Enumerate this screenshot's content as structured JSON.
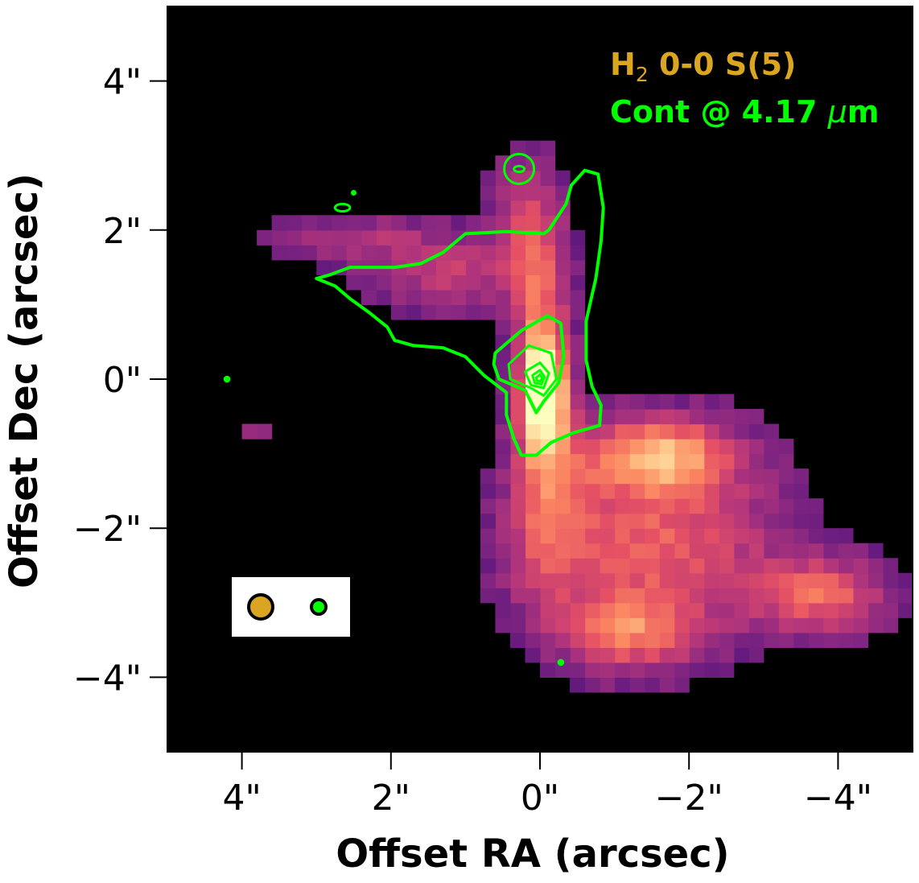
{
  "chart_data": {
    "type": "heatmap",
    "title": "",
    "xlabel": "Offset RA (arcsec)",
    "ylabel": "Offset Dec (arcsec)",
    "xlim": [
      5,
      -5
    ],
    "ylim": [
      -5,
      5
    ],
    "x_ticks": [
      {
        "value": 4,
        "label": "4\""
      },
      {
        "value": 2,
        "label": "2\""
      },
      {
        "value": 0,
        "label": "0\""
      },
      {
        "value": -2,
        "label": "−2\""
      },
      {
        "value": -4,
        "label": "−4\""
      }
    ],
    "y_ticks": [
      {
        "value": 4,
        "label": "4\""
      },
      {
        "value": 2,
        "label": "2\""
      },
      {
        "value": 0,
        "label": "0\""
      },
      {
        "value": -2,
        "label": "−2\""
      },
      {
        "value": -4,
        "label": "−4\""
      }
    ],
    "colormap": "magma",
    "background_color": "#000000",
    "grid": false,
    "legend": {
      "placement": "top-right",
      "entries": [
        {
          "label_main": "H",
          "label_sub": "2",
          "label_rest": " 0-0 S(5)",
          "color": "#DAA520"
        },
        {
          "label_main": "Cont @ 4.17 ",
          "label_greek": "μ",
          "label_rest": "m",
          "color": "#00FF00"
        }
      ]
    },
    "beams": [
      {
        "name": "H2 0-0 S(5) beam",
        "color": "#DAA520",
        "radius_arcsec": 0.17
      },
      {
        "name": "Cont @ 4.17 um beam",
        "color": "#00FF00",
        "radius_arcsec": 0.1
      }
    ],
    "emission_regions": [
      {
        "name": "central-knot",
        "x": -0.05,
        "y": -0.2,
        "sx": 0.22,
        "sy": 0.55,
        "amp": 1.0
      },
      {
        "name": "jet-axis",
        "x": 0.0,
        "y": 0.7,
        "sx": 0.25,
        "sy": 1.0,
        "amp": 0.55
      },
      {
        "name": "north-lobe-upper",
        "x": 0.2,
        "y": 2.2,
        "sx": 0.35,
        "sy": 0.6,
        "amp": 0.35
      },
      {
        "name": "north-lobe-west",
        "x": 1.2,
        "y": 1.4,
        "sx": 0.8,
        "sy": 0.35,
        "amp": 0.38
      },
      {
        "name": "north-lobe-tip",
        "x": 2.5,
        "y": 1.9,
        "sx": 0.9,
        "sy": 0.25,
        "amp": 0.28
      },
      {
        "name": "south-ridge",
        "x": -1.6,
        "y": -1.0,
        "sx": 0.7,
        "sy": 0.35,
        "amp": 0.75
      },
      {
        "name": "south-lobe-body",
        "x": -1.5,
        "y": -2.2,
        "sx": 1.2,
        "sy": 0.9,
        "amp": 0.6
      },
      {
        "name": "south-lobe-west-tip",
        "x": -3.8,
        "y": -2.9,
        "sx": 0.6,
        "sy": 0.35,
        "amp": 0.6
      },
      {
        "name": "south-lobe-base",
        "x": -1.2,
        "y": -3.4,
        "sx": 0.6,
        "sy": 0.35,
        "amp": 0.55
      },
      {
        "name": "south-axis",
        "x": -0.1,
        "y": -1.7,
        "sx": 0.35,
        "sy": 0.9,
        "amp": 0.45
      },
      {
        "name": "east-blob",
        "x": 3.8,
        "y": -0.7,
        "sx": 0.12,
        "sy": 0.15,
        "amp": 0.25
      }
    ],
    "continuum_contours": [
      {
        "level": 1,
        "points": [
          [
            3.0,
            1.35
          ],
          [
            2.75,
            1.25
          ],
          [
            2.55,
            1.08
          ],
          [
            2.3,
            0.9
          ],
          [
            2.05,
            0.7
          ],
          [
            1.95,
            0.52
          ],
          [
            1.7,
            0.45
          ],
          [
            1.3,
            0.42
          ],
          [
            1.0,
            0.3
          ],
          [
            0.75,
            0.05
          ],
          [
            0.45,
            -0.18
          ],
          [
            0.45,
            -0.48
          ],
          [
            0.35,
            -0.8
          ],
          [
            0.25,
            -1.02
          ],
          [
            0.05,
            -1.02
          ],
          [
            -0.15,
            -0.85
          ],
          [
            -0.45,
            -0.72
          ],
          [
            -0.8,
            -0.62
          ],
          [
            -0.82,
            -0.35
          ],
          [
            -0.7,
            -0.1
          ],
          [
            -0.62,
            0.25
          ],
          [
            -0.62,
            0.78
          ],
          [
            -0.75,
            1.35
          ],
          [
            -0.82,
            1.85
          ],
          [
            -0.85,
            2.3
          ],
          [
            -0.78,
            2.75
          ],
          [
            -0.6,
            2.8
          ],
          [
            -0.42,
            2.6
          ],
          [
            -0.35,
            2.35
          ],
          [
            -0.12,
            2.0
          ],
          [
            -0.05,
            1.95
          ],
          [
            0.45,
            1.98
          ],
          [
            1.0,
            1.95
          ],
          [
            1.3,
            1.7
          ],
          [
            1.6,
            1.55
          ],
          [
            1.95,
            1.5
          ],
          [
            2.2,
            1.5
          ],
          [
            2.55,
            1.5
          ],
          [
            2.82,
            1.4
          ]
        ]
      },
      {
        "level": 2,
        "points": [
          [
            0.6,
            0.35
          ],
          [
            0.25,
            0.65
          ],
          [
            -0.1,
            0.85
          ],
          [
            -0.28,
            0.75
          ],
          [
            -0.32,
            0.3
          ],
          [
            -0.25,
            -0.05
          ],
          [
            -0.05,
            -0.3
          ],
          [
            0.05,
            -0.45
          ],
          [
            0.2,
            -0.15
          ],
          [
            0.55,
            0.0
          ],
          [
            0.62,
            0.2
          ]
        ]
      },
      {
        "level": 3,
        "points": [
          [
            0.42,
            0.2
          ],
          [
            0.15,
            0.45
          ],
          [
            -0.15,
            0.35
          ],
          [
            -0.22,
            0.0
          ],
          [
            -0.05,
            -0.22
          ],
          [
            0.12,
            -0.12
          ],
          [
            0.4,
            0.0
          ]
        ]
      },
      {
        "level": 4,
        "points": [
          [
            0.2,
            0.1
          ],
          [
            0.0,
            0.22
          ],
          [
            -0.12,
            0.08
          ],
          [
            -0.05,
            -0.12
          ],
          [
            0.12,
            -0.08
          ]
        ]
      },
      {
        "level": 5,
        "points": [
          [
            0.1,
            0.05
          ],
          [
            0.0,
            0.12
          ],
          [
            -0.06,
            0.03
          ],
          [
            -0.02,
            -0.07
          ],
          [
            0.07,
            -0.05
          ]
        ]
      },
      {
        "level": 6,
        "points": [
          [
            0.05,
            0.02
          ],
          [
            0.0,
            0.06
          ],
          [
            -0.03,
            0.01
          ],
          [
            0.0,
            -0.03
          ],
          [
            0.04,
            -0.02
          ]
        ]
      }
    ],
    "continuum_small_contours": [
      {
        "name": "north-source-outer",
        "x": 0.28,
        "y": 2.82,
        "rx": 0.2,
        "ry": 0.2
      },
      {
        "name": "north-source-inner",
        "x": 0.28,
        "y": 2.82,
        "rx": 0.07,
        "ry": 0.04
      },
      {
        "name": "northeast-blip",
        "x": 2.65,
        "y": 2.3,
        "rx": 0.1,
        "ry": 0.05
      },
      {
        "name": "northeast-dot",
        "x": 2.5,
        "y": 2.5,
        "rx": 0.02,
        "ry": 0.02
      },
      {
        "name": "east-dot",
        "x": 4.2,
        "y": 0.0,
        "rx": 0.03,
        "ry": 0.03
      },
      {
        "name": "south-dot",
        "x": -0.28,
        "y": -3.8,
        "rx": 0.03,
        "ry": 0.03
      }
    ]
  }
}
